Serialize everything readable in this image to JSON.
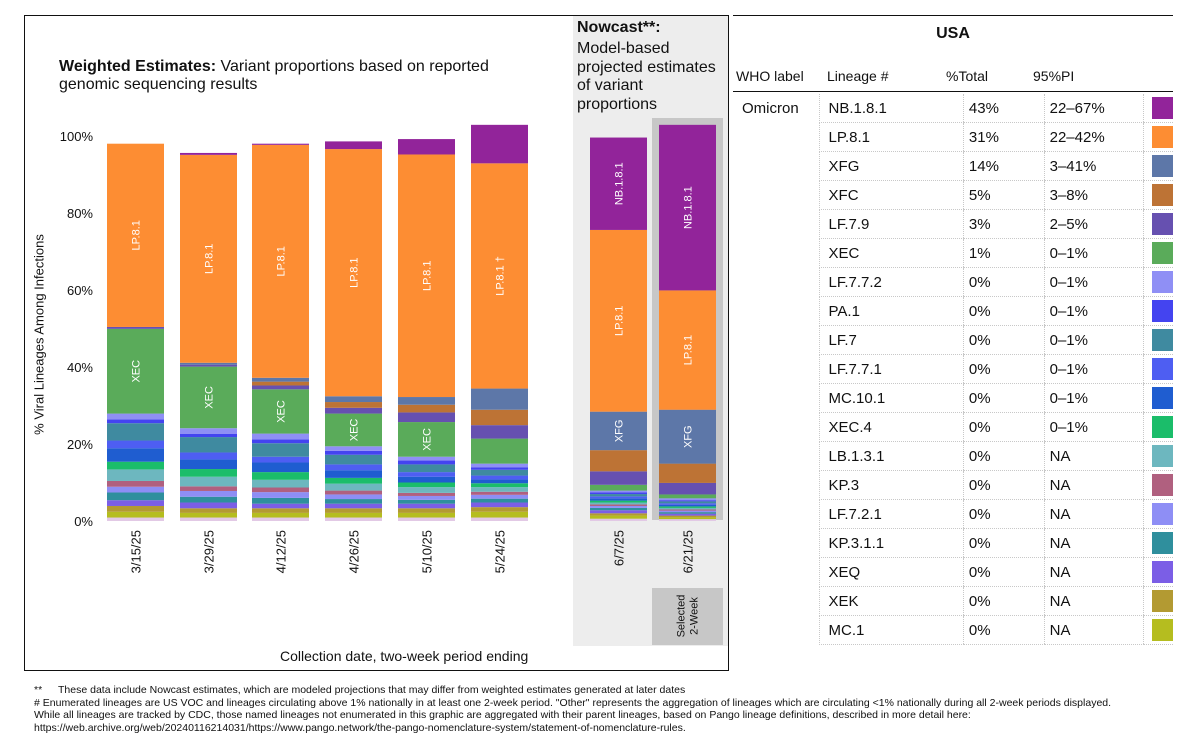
{
  "weighted": {
    "title_bold": "Weighted Estimates:",
    "title_rest": " Variant proportions based on reported genomic sequencing results"
  },
  "nowcast": {
    "title": "Nowcast**:",
    "subtitle": "Model-based projected estimates of variant proportions"
  },
  "axes": {
    "y_title": "% Viral Lineages Among Infections",
    "x_title": "Collection date, two-week period ending",
    "selected_label": [
      "Selected",
      "2-Week"
    ]
  },
  "chart_data": {
    "type": "bar",
    "stacked": true,
    "ylim": [
      0,
      100
    ],
    "yticks": [
      "0%",
      "20%",
      "40%",
      "60%",
      "80%",
      "100%"
    ],
    "categories": [
      "3/15/25",
      "3/29/25",
      "4/12/25",
      "4/26/25",
      "5/10/25",
      "5/24/25",
      "6/7/25",
      "6/21/25"
    ],
    "nowcast_categories": [
      "6/7/25",
      "6/21/25"
    ],
    "selected_category": "6/21/25",
    "series_colors": {
      "MC.1": "#b5bd1f",
      "XEK": "#b39a32",
      "XEQ": "#7b5ee6",
      "KP.3.1.1": "#2f8f9d",
      "LF.7.2.1": "#8e8ef5",
      "KP.3": "#b0607f",
      "LB.1.3.1": "#6db7bf",
      "XEC.4": "#1bbd6a",
      "MC.10.1": "#1f5dd0",
      "LF.7.7.1": "#4e5ef2",
      "LF.7": "#3f8aa0",
      "PA.1": "#4444f0",
      "LF.7.7.2": "#8f8ff5",
      "XEC": "#5aab5a",
      "LF.7.9": "#6650b0",
      "XFC": "#bd7335",
      "XFG": "#5d77a8",
      "LP.8.1": "#fd8d33",
      "NB.1.8.1": "#92249a",
      "Other": "#e2c9e5"
    },
    "stack_order": [
      "MC.1",
      "XEK",
      "XEQ",
      "KP.3.1.1",
      "LF.7.2.1",
      "KP.3",
      "LB.1.3.1",
      "XEC.4",
      "MC.10.1",
      "LF.7.7.1",
      "LF.7",
      "PA.1",
      "LF.7.7.2",
      "XEC",
      "LF.7.9",
      "XFC",
      "XFG",
      "LP.8.1",
      "NB.1.8.1"
    ],
    "series": [
      {
        "name": "Other",
        "values": [
          0.9,
          0.9,
          0.9,
          0.9,
          0.9,
          0.9,
          0.6,
          0.5
        ]
      },
      {
        "name": "MC.1",
        "values": [
          1.5,
          1.2,
          1.2,
          1.2,
          1.2,
          1.5,
          0.8,
          0.5
        ]
      },
      {
        "name": "XEK",
        "values": [
          1.5,
          1.2,
          1.2,
          1.2,
          1.2,
          1.2,
          0.6,
          0.4
        ]
      },
      {
        "name": "XEQ",
        "values": [
          1.5,
          1.5,
          1.2,
          1.2,
          1.2,
          1.2,
          0.8,
          0.5
        ]
      },
      {
        "name": "KP.3.1.1",
        "values": [
          2.0,
          1.5,
          1.5,
          1.2,
          1.0,
          1.0,
          0.6,
          0.4
        ]
      },
      {
        "name": "LF.7.2.1",
        "values": [
          1.5,
          1.5,
          1.5,
          1.2,
          1.0,
          1.0,
          0.5,
          0.4
        ]
      },
      {
        "name": "KP.3",
        "values": [
          1.5,
          1.2,
          1.2,
          1.0,
          0.8,
          0.8,
          0.4,
          0.3
        ]
      },
      {
        "name": "LB.1.3.1",
        "values": [
          3.0,
          2.5,
          2.0,
          1.8,
          1.5,
          1.2,
          0.5,
          0.4
        ]
      },
      {
        "name": "XEC.4",
        "values": [
          2.0,
          2.0,
          2.0,
          1.5,
          1.2,
          1.0,
          0.5,
          0.4
        ]
      },
      {
        "name": "MC.10.1",
        "values": [
          3.5,
          2.5,
          2.5,
          2.0,
          1.5,
          1.0,
          0.6,
          0.4
        ]
      },
      {
        "name": "LF.7.7.1",
        "values": [
          2.0,
          1.8,
          1.5,
          1.5,
          1.2,
          1.0,
          0.5,
          0.4
        ]
      },
      {
        "name": "LF.7",
        "values": [
          4.5,
          4.0,
          3.5,
          2.5,
          2.0,
          1.5,
          0.6,
          0.5
        ]
      },
      {
        "name": "PA.1",
        "values": [
          1.0,
          0.8,
          1.0,
          1.0,
          1.0,
          0.6,
          0.4,
          0.3
        ]
      },
      {
        "name": "LF.7.7.2",
        "values": [
          1.5,
          1.5,
          1.5,
          1.2,
          1.0,
          1.0,
          0.5,
          0.5
        ]
      },
      {
        "name": "XEC",
        "values": [
          22.0,
          16.0,
          11.5,
          8.5,
          9.0,
          6.5,
          1.5,
          1.0
        ]
      },
      {
        "name": "LF.7.9",
        "values": [
          0.5,
          0.5,
          1.0,
          1.5,
          2.5,
          3.5,
          3.5,
          3.0
        ]
      },
      {
        "name": "XFC",
        "values": [
          0.0,
          0.0,
          1.0,
          1.5,
          2.0,
          4.0,
          5.5,
          5.0
        ]
      },
      {
        "name": "XFG",
        "values": [
          0.0,
          0.5,
          1.0,
          1.5,
          2.0,
          5.5,
          10.0,
          14.0
        ]
      },
      {
        "name": "LP.8.1",
        "values": [
          47.6,
          54.0,
          60.5,
          64.2,
          63.0,
          58.5,
          47.2,
          31.0
        ]
      },
      {
        "name": "NB.1.8.1",
        "values": [
          0.0,
          0.5,
          0.3,
          2.0,
          4.0,
          10.0,
          24.0,
          43.0
        ]
      }
    ],
    "bar_labels": [
      {
        "category": "3/15/25",
        "series": "LP.8.1",
        "text": "LP.8.1"
      },
      {
        "category": "3/15/25",
        "series": "XEC",
        "text": "XEC"
      },
      {
        "category": "3/29/25",
        "series": "LP.8.1",
        "text": "LP.8.1"
      },
      {
        "category": "3/29/25",
        "series": "XEC",
        "text": "XEC"
      },
      {
        "category": "4/12/25",
        "series": "LP.8.1",
        "text": "LP.8.1"
      },
      {
        "category": "4/12/25",
        "series": "XEC",
        "text": "XEC"
      },
      {
        "category": "4/26/25",
        "series": "LP.8.1",
        "text": "LP.8.1"
      },
      {
        "category": "4/26/25",
        "series": "XEC",
        "text": "XEC"
      },
      {
        "category": "5/10/25",
        "series": "LP.8.1",
        "text": "LP.8.1"
      },
      {
        "category": "5/10/25",
        "series": "XEC",
        "text": "XEC"
      },
      {
        "category": "5/24/25",
        "series": "LP.8.1",
        "text": "LP.8.1 †"
      },
      {
        "category": "6/7/25",
        "series": "LP.8.1",
        "text": "LP.8.1"
      },
      {
        "category": "6/7/25",
        "series": "NB.1.8.1",
        "text": "NB.1.8.1"
      },
      {
        "category": "6/7/25",
        "series": "XFG",
        "text": "XFG"
      },
      {
        "category": "6/21/25",
        "series": "LP.8.1",
        "text": "LP.8.1"
      },
      {
        "category": "6/21/25",
        "series": "NB.1.8.1",
        "text": "NB.1.8.1"
      },
      {
        "category": "6/21/25",
        "series": "XFG",
        "text": "XFG"
      }
    ]
  },
  "table": {
    "country": "USA",
    "headers": {
      "who": "WHO label",
      "lineage": "Lineage #",
      "total": "%Total",
      "pi": "95%PI"
    },
    "who_label": "Omicron",
    "rows": [
      {
        "lineage": "NB.1.8.1",
        "total": "43%",
        "pi": "22–67%",
        "color": "#92249a"
      },
      {
        "lineage": "LP.8.1",
        "total": "31%",
        "pi": "22–42%",
        "color": "#fd8d33"
      },
      {
        "lineage": "XFG",
        "total": "14%",
        "pi": "3–41%",
        "color": "#5d77a8"
      },
      {
        "lineage": "XFC",
        "total": "5%",
        "pi": "3–8%",
        "color": "#bd7335"
      },
      {
        "lineage": "LF.7.9",
        "total": "3%",
        "pi": "2–5%",
        "color": "#6650b0"
      },
      {
        "lineage": "XEC",
        "total": "1%",
        "pi": "0–1%",
        "color": "#5aab5a"
      },
      {
        "lineage": "LF.7.7.2",
        "total": "0%",
        "pi": "0–1%",
        "color": "#8f8ff5"
      },
      {
        "lineage": "PA.1",
        "total": "0%",
        "pi": "0–1%",
        "color": "#4444f0"
      },
      {
        "lineage": "LF.7",
        "total": "0%",
        "pi": "0–1%",
        "color": "#3f8aa0"
      },
      {
        "lineage": "LF.7.7.1",
        "total": "0%",
        "pi": "0–1%",
        "color": "#4e5ef2"
      },
      {
        "lineage": "MC.10.1",
        "total": "0%",
        "pi": "0–1%",
        "color": "#1f5dd0"
      },
      {
        "lineage": "XEC.4",
        "total": "0%",
        "pi": "0–1%",
        "color": "#1bbd6a"
      },
      {
        "lineage": "LB.1.3.1",
        "total": "0%",
        "pi": "NA",
        "color": "#6db7bf"
      },
      {
        "lineage": "KP.3",
        "total": "0%",
        "pi": "NA",
        "color": "#b0607f"
      },
      {
        "lineage": "LF.7.2.1",
        "total": "0%",
        "pi": "NA",
        "color": "#8e8ef5"
      },
      {
        "lineage": "KP.3.1.1",
        "total": "0%",
        "pi": "NA",
        "color": "#2f8f9d"
      },
      {
        "lineage": "XEQ",
        "total": "0%",
        "pi": "NA",
        "color": "#7b5ee6"
      },
      {
        "lineage": "XEK",
        "total": "0%",
        "pi": "NA",
        "color": "#b39a32"
      },
      {
        "lineage": "MC.1",
        "total": "0%",
        "pi": "NA",
        "color": "#b5bd1f"
      }
    ]
  },
  "footnotes": {
    "star_mark": "**",
    "star_text": "These data include Nowcast estimates, which are modeled projections that may differ from weighted estimates generated at later dates",
    "hash_text": "# Enumerated lineages are US VOC and lineages circulating above 1% nationally in at least one 2-week period. \"Other\" represents the aggregation of lineages which are circulating <1% nationally during all 2-week periods displayed.",
    "line3": "While all lineages are tracked by CDC, those named lineages not enumerated in this graphic are aggregated with their parent lineages, based on Pango lineage definitions, described in more detail here:",
    "line4": "https://web.archive.org/web/20240116214031/https://www.pango.network/the-pango-nomenclature-system/statement-of-nomenclature-rules."
  }
}
